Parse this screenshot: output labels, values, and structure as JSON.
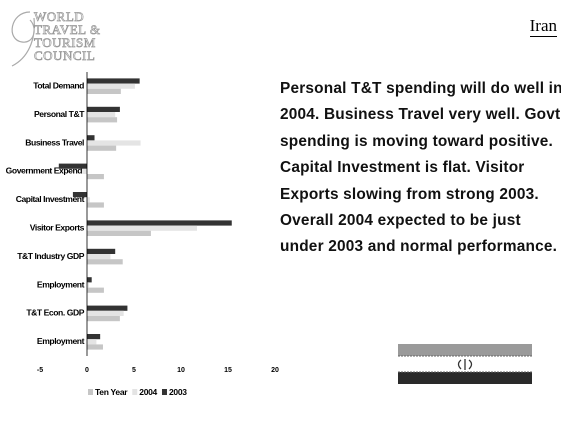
{
  "logo": {
    "lines": [
      "WORLD",
      "TRAVEL &",
      "TOURISM",
      "COUNCIL"
    ]
  },
  "country": "Iran",
  "commentary": "Personal T&T spending will do well in 2004.  Business Travel very well.  Govt spending is moving toward positive. Capital Investment is flat. Visitor Exports slowing from strong 2003. Overall 2004 expected to be just under 2003 and normal performance.",
  "chart_data": {
    "type": "hbar",
    "categories": [
      "Total Demand",
      "Personal T&T",
      "Business Travel",
      "Government Expend.",
      "Capital Investment",
      "Visitor Exports",
      "T&T Industry GDP",
      "Employment",
      "T&T Econ. GDP",
      "Employment"
    ],
    "series": [
      {
        "name": "2003",
        "color": "#333333",
        "values": [
          5.6,
          3.5,
          0.8,
          -3.0,
          -1.5,
          15.4,
          3.0,
          0.5,
          4.3,
          1.4
        ]
      },
      {
        "name": "2004",
        "color": "#e4e4e4",
        "values": [
          5.1,
          3.0,
          5.7,
          -0.5,
          0.3,
          11.7,
          2.5,
          0.2,
          3.9,
          1.0
        ]
      },
      {
        "name": "Ten Year",
        "color": "#c6c6c6",
        "values": [
          3.6,
          3.2,
          3.1,
          1.8,
          1.8,
          6.8,
          3.8,
          1.8,
          3.5,
          1.7
        ]
      }
    ],
    "xlim": [
      -5,
      20
    ],
    "xticks": [
      -5,
      0,
      5,
      10,
      15,
      20
    ],
    "legend": "bottom"
  }
}
